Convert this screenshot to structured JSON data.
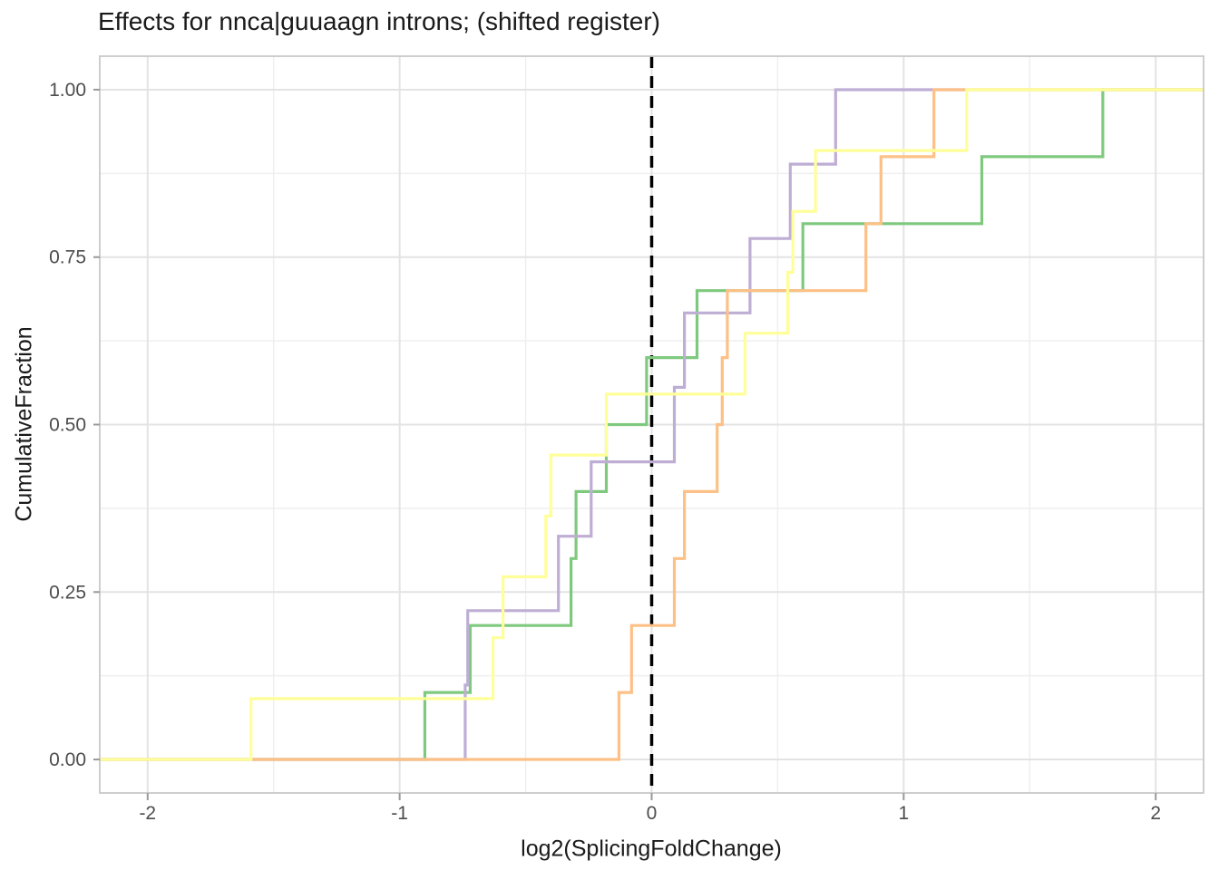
{
  "chart_data": {
    "type": "ecdf_step",
    "title": "Effects for nnca|guuaagn introns; (shifted register)",
    "xlabel": "log2(SplicingFoldChange)",
    "ylabel": "CumulativeFraction",
    "xlim": [
      -2.19,
      2.19
    ],
    "ylim": [
      -0.05,
      1.05
    ],
    "grid": true,
    "legend": false,
    "x_ticks": [
      {
        "value": -2,
        "label": "-2"
      },
      {
        "value": -1,
        "label": "-1"
      },
      {
        "value": 0,
        "label": "0"
      },
      {
        "value": 1,
        "label": "1"
      },
      {
        "value": 2,
        "label": "2"
      }
    ],
    "y_ticks": [
      {
        "value": 0.0,
        "label": "0.00"
      },
      {
        "value": 0.25,
        "label": "0.25"
      },
      {
        "value": 0.5,
        "label": "0.50"
      },
      {
        "value": 0.75,
        "label": "0.75"
      },
      {
        "value": 1.0,
        "label": "1.00"
      }
    ],
    "x_minor_ticks": [
      -1.5,
      -0.5,
      0.5,
      1.5
    ],
    "y_minor_ticks": [
      0.125,
      0.375,
      0.625,
      0.875
    ],
    "reference_line": {
      "x": 0,
      "style": "dashed",
      "color": "#000000"
    },
    "series": [
      {
        "name": "green",
        "color": "#7fc97f",
        "n": 10,
        "x": [
          -0.9,
          -0.72,
          -0.32,
          -0.3,
          -0.18,
          -0.02,
          0.18,
          0.6,
          1.31,
          1.79
        ]
      },
      {
        "name": "purple",
        "color": "#beaed4",
        "n": 9,
        "x": [
          -0.74,
          -0.73,
          -0.37,
          -0.24,
          0.09,
          0.13,
          0.39,
          0.55,
          0.73
        ]
      },
      {
        "name": "orange",
        "color": "#fdc086",
        "n": 10,
        "x": [
          -0.13,
          -0.08,
          0.09,
          0.13,
          0.26,
          0.28,
          0.3,
          0.85,
          0.91,
          1.12
        ]
      },
      {
        "name": "yellow",
        "color": "#ffff99",
        "n": 11,
        "x": [
          -1.59,
          -0.63,
          -0.59,
          -0.42,
          -0.4,
          -0.18,
          0.37,
          0.54,
          0.56,
          0.65,
          1.25
        ]
      }
    ],
    "style": {
      "grid_major_color": "#e3e3e3",
      "grid_minor_color": "#efefef",
      "panel_border_color": "#c9c9c9",
      "tick_mark_color": "#999999",
      "tick_label_color": "#4d4d4d",
      "title_color": "#1a1a1a"
    }
  }
}
